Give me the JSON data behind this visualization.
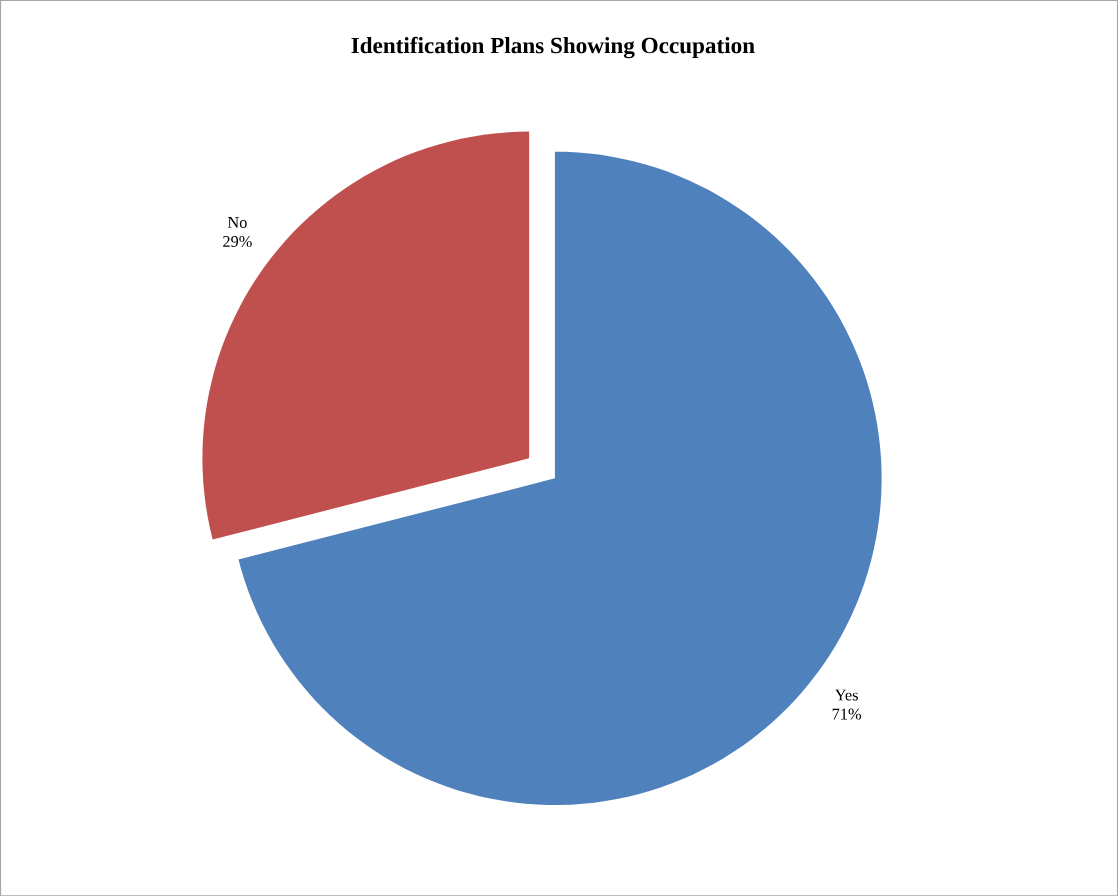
{
  "chart_data": {
    "type": "pie",
    "title": "Identification Plans Showing Occupation",
    "categories": [
      "Yes",
      "No"
    ],
    "values": [
      71,
      29
    ],
    "colors": [
      "#4f81bd",
      "#c0504d"
    ],
    "value_labels": [
      "71%",
      "29%"
    ]
  }
}
